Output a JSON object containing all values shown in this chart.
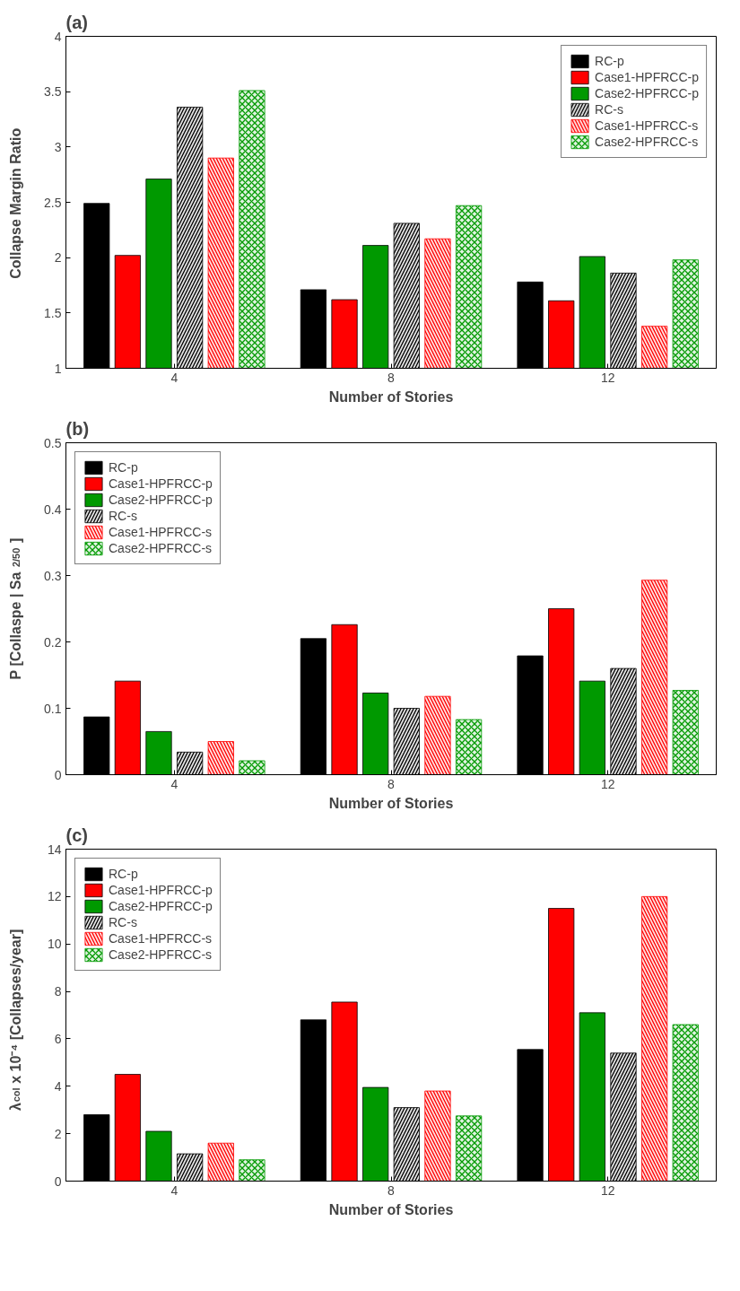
{
  "chart_data": [
    {
      "type": "bar",
      "title": "(a)",
      "xlabel": "Number of Stories",
      "ylabel": "Collapse Margin Ratio",
      "categories": [
        "4",
        "8",
        "12"
      ],
      "ylim": [
        1,
        4
      ],
      "yticks": [
        1,
        1.5,
        2,
        2.5,
        3,
        3.5,
        4
      ],
      "legend": "top right",
      "grid": false,
      "series": [
        {
          "name": "RC-p",
          "color": "#000000",
          "values": [
            2.49,
            1.71,
            1.78
          ]
        },
        {
          "name": "Case1-HPFRCC-p",
          "color": "#ff0000",
          "values": [
            2.02,
            1.62,
            1.61
          ]
        },
        {
          "name": "Case2-HPFRCC-p",
          "color": "#009900",
          "values": [
            2.71,
            2.11,
            2.01
          ]
        },
        {
          "name": "RC-s",
          "color": "#000000",
          "values": [
            3.36,
            2.31,
            1.86
          ]
        },
        {
          "name": "Case1-HPFRCC-s",
          "color": "#ff0000",
          "values": [
            2.9,
            2.17,
            1.38
          ]
        },
        {
          "name": "Case2-HPFRCC-s",
          "color": "#009900",
          "values": [
            3.51,
            2.47,
            1.98
          ]
        }
      ]
    },
    {
      "type": "bar",
      "title": "(b)",
      "xlabel": "Number of Stories",
      "ylabel": "P [Collaspe | Sa$_{2/50}$]",
      "categories": [
        "4",
        "8",
        "12"
      ],
      "ylim": [
        0,
        0.5
      ],
      "yticks": [
        0,
        0.1,
        0.2,
        0.3,
        0.4,
        0.5
      ],
      "legend": "top left",
      "grid": false,
      "series": [
        {
          "name": "RC-p",
          "color": "#000000",
          "values": [
            0.087,
            0.205,
            0.179
          ]
        },
        {
          "name": "Case1-HPFRCC-p",
          "color": "#ff0000",
          "values": [
            0.141,
            0.226,
            0.25
          ]
        },
        {
          "name": "Case2-HPFRCC-p",
          "color": "#009900",
          "values": [
            0.065,
            0.123,
            0.141
          ]
        },
        {
          "name": "RC-s",
          "color": "#000000",
          "values": [
            0.034,
            0.1,
            0.16
          ]
        },
        {
          "name": "Case1-HPFRCC-s",
          "color": "#ff0000",
          "values": [
            0.05,
            0.118,
            0.293
          ]
        },
        {
          "name": "Case2-HPFRCC-s",
          "color": "#009900",
          "values": [
            0.021,
            0.083,
            0.127
          ]
        }
      ]
    },
    {
      "type": "bar",
      "title": "(c)",
      "xlabel": "Number of Stories",
      "ylabel": "λ$_{col}$ x 10⁻⁴ [Collapses/year]",
      "categories": [
        "4",
        "8",
        "12"
      ],
      "ylim": [
        0,
        14
      ],
      "yticks": [
        0,
        2,
        4,
        6,
        8,
        10,
        12,
        14
      ],
      "legend": "top left",
      "grid": false,
      "series": [
        {
          "name": "RC-p",
          "color": "#000000",
          "values": [
            2.8,
            6.8,
            5.55
          ]
        },
        {
          "name": "Case1-HPFRCC-p",
          "color": "#ff0000",
          "values": [
            4.5,
            7.55,
            11.5
          ]
        },
        {
          "name": "Case2-HPFRCC-p",
          "color": "#009900",
          "values": [
            2.1,
            3.95,
            7.1
          ]
        },
        {
          "name": "RC-s",
          "color": "#000000",
          "values": [
            1.15,
            3.1,
            5.4
          ]
        },
        {
          "name": "Case1-HPFRCC-s",
          "color": "#ff0000",
          "values": [
            1.6,
            3.8,
            12.0
          ]
        },
        {
          "name": "Case2-HPFRCC-s",
          "color": "#009900",
          "values": [
            0.9,
            2.75,
            6.6
          ]
        }
      ]
    }
  ]
}
